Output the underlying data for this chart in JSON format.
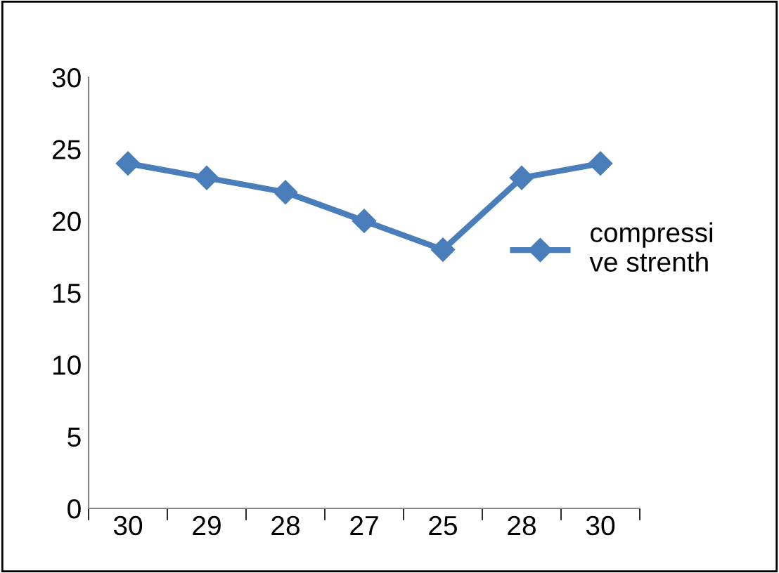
{
  "chart_data": {
    "type": "line",
    "categories": [
      "30",
      "29",
      "28",
      "27",
      "25",
      "28",
      "30"
    ],
    "series": [
      {
        "name": "compressi\nve strenth",
        "color": "#4a7ebb",
        "values": [
          24,
          23,
          22,
          20,
          18,
          23,
          24
        ]
      }
    ],
    "ylim": [
      0,
      30
    ],
    "yticks": [
      0,
      5,
      10,
      15,
      20,
      25,
      30
    ],
    "grid": false,
    "legend": "right",
    "marker": "diamond",
    "line_style": "solid"
  }
}
